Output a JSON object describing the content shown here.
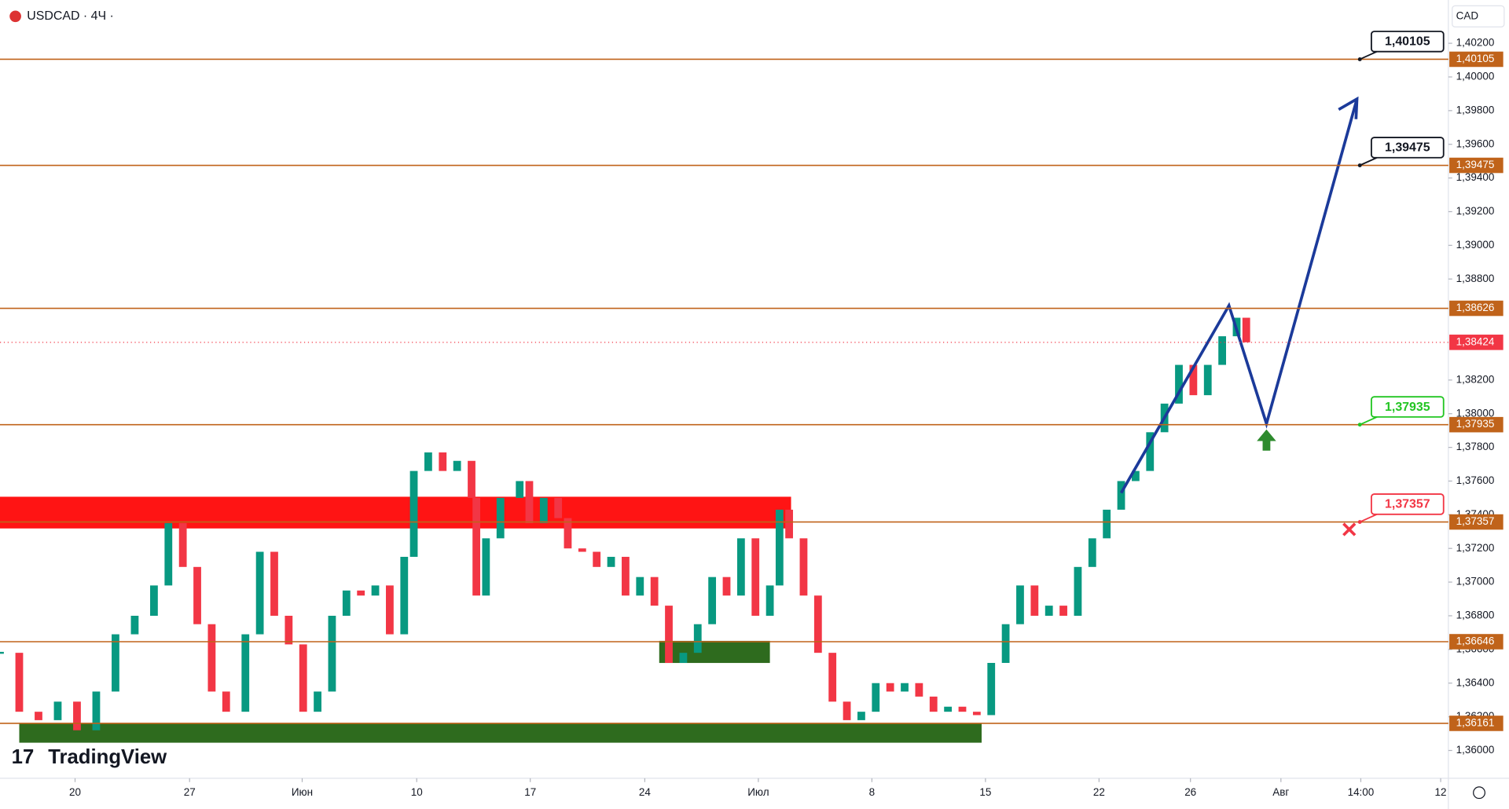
{
  "chart_data": {
    "type": "candlestick",
    "title": "USDCAD · 4Ч ·",
    "currency": "CAD",
    "watermark": "TradingView",
    "x": [
      0,
      20,
      40,
      60,
      80,
      100,
      120,
      140,
      160,
      175,
      190,
      205,
      220,
      235,
      255,
      270,
      285,
      300,
      315,
      330,
      345,
      360,
      375,
      390,
      405,
      420,
      430,
      445,
      460,
      475,
      490,
      495,
      505,
      520,
      540,
      550,
      565,
      580,
      590,
      605,
      620,
      635,
      650,
      665,
      680,
      695,
      710,
      725,
      740,
      755,
      770,
      785,
      800,
      810,
      820,
      835,
      850,
      865,
      880,
      895,
      910,
      925,
      940,
      955,
      970,
      985,
      1000,
      1015,
      1030,
      1045,
      1060,
      1075,
      1090,
      1105,
      1120,
      1135,
      1150,
      1165,
      1180,
      1195,
      1210,
      1225,
      1240,
      1255,
      1270,
      1285,
      1295
    ],
    "close": [
      1.3658,
      1.3623,
      1.3618,
      1.3629,
      1.3612,
      1.3635,
      1.3669,
      1.368,
      1.3698,
      1.3735,
      1.3709,
      1.3675,
      1.3635,
      1.3623,
      1.3669,
      1.3718,
      1.368,
      1.3663,
      1.3623,
      1.3635,
      1.368,
      1.3695,
      1.3692,
      1.3698,
      1.3669,
      1.3715,
      1.3766,
      1.3777,
      1.3766,
      1.3772,
      1.375,
      1.3692,
      1.3726,
      1.375,
      1.376,
      1.3735,
      1.375,
      1.3738,
      1.372,
      1.3718,
      1.3709,
      1.3715,
      1.3692,
      1.3703,
      1.3686,
      1.3652,
      1.3658,
      1.3675,
      1.3703,
      1.3692,
      1.3726,
      1.368,
      1.3698,
      1.3743,
      1.3726,
      1.3692,
      1.3658,
      1.3629,
      1.3618,
      1.3623,
      1.364,
      1.3635,
      1.364,
      1.3632,
      1.3623,
      1.3626,
      1.3623,
      1.3621,
      1.3652,
      1.3675,
      1.3698,
      1.368,
      1.3686,
      1.368,
      1.3709,
      1.3726,
      1.3743,
      1.376,
      1.3766,
      1.3789,
      1.3806,
      1.3829,
      1.3811,
      1.3829,
      1.3846,
      1.3857,
      1.38424
    ],
    "up_color": "#089981",
    "down_color": "#f23645",
    "xlim": [
      0,
      1505
    ],
    "xticks": [
      {
        "value": 78,
        "label": "20"
      },
      {
        "value": 197,
        "label": "27"
      },
      {
        "value": 314,
        "label": "Июн"
      },
      {
        "value": 433,
        "label": "10"
      },
      {
        "value": 551,
        "label": "17"
      },
      {
        "value": 670,
        "label": "24"
      },
      {
        "value": 788,
        "label": "Июл"
      },
      {
        "value": 906,
        "label": "8"
      },
      {
        "value": 1024,
        "label": "15"
      },
      {
        "value": 1142,
        "label": "22"
      },
      {
        "value": 1237,
        "label": "26"
      },
      {
        "value": 1331,
        "label": "Авг"
      },
      {
        "value": 1414,
        "label": "14:00"
      },
      {
        "value": 1497,
        "label": "12"
      }
    ],
    "ylim": [
      1.35835,
      1.40457
    ],
    "yticks": [
      {
        "value": 1.36,
        "label": "1,36000"
      },
      {
        "value": 1.362,
        "label": "1,36200"
      },
      {
        "value": 1.364,
        "label": "1,36400"
      },
      {
        "value": 1.366,
        "label": "1,36600"
      },
      {
        "value": 1.368,
        "label": "1,36800"
      },
      {
        "value": 1.37,
        "label": "1,37000"
      },
      {
        "value": 1.372,
        "label": "1,37200"
      },
      {
        "value": 1.374,
        "label": "1,37400"
      },
      {
        "value": 1.376,
        "label": "1,37600"
      },
      {
        "value": 1.378,
        "label": "1,37800"
      },
      {
        "value": 1.38,
        "label": "1,38000"
      },
      {
        "value": 1.382,
        "label": "1,38200"
      },
      {
        "value": 1.388,
        "label": "1,38800"
      },
      {
        "value": 1.39,
        "label": "1,39000"
      },
      {
        "value": 1.392,
        "label": "1,39200"
      },
      {
        "value": 1.394,
        "label": "1,39400"
      },
      {
        "value": 1.396,
        "label": "1,39600"
      },
      {
        "value": 1.398,
        "label": "1,39800"
      },
      {
        "value": 1.4,
        "label": "1,40000"
      },
      {
        "value": 1.402,
        "label": "1,40200"
      }
    ],
    "level_color": "#c0631a",
    "levels": [
      {
        "value": 1.40105,
        "label": "1,40105",
        "callout_color": "#131722"
      },
      {
        "value": 1.39475,
        "label": "1,39475",
        "callout_color": "#131722"
      },
      {
        "value": 1.38626,
        "label": "1,38626"
      },
      {
        "value": 1.37935,
        "label": "1,37935",
        "callout_color": "#22c522"
      },
      {
        "value": 1.37357,
        "label": "1,37357",
        "callout_color": "#f23645"
      },
      {
        "value": 1.36646,
        "label": "1,36646"
      },
      {
        "value": 1.36161,
        "label": "1,36161"
      }
    ],
    "last_price": {
      "value": 1.38424,
      "label": "1,38424",
      "color": "#f23645"
    }
  }
}
